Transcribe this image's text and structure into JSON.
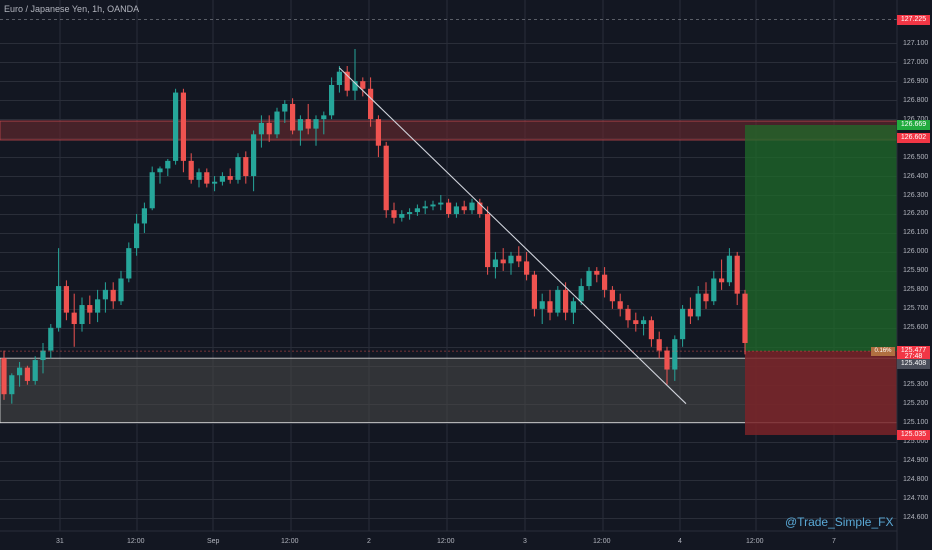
{
  "header": {
    "symbol_title": "Euro / Japanese Yen, 1h, OANDA"
  },
  "watermark": "@Trade_Simple_FX",
  "colors": {
    "background": "#131722",
    "bull": "#26a69a",
    "bear": "#ef5350",
    "grid": "#2a2e39",
    "trendline": "#d1d4dc",
    "target_zone": "#1f6b2a",
    "stop_zone": "#7a2328",
    "resistance_zone": "#6b2a2e",
    "support_zone": "#4a4a48"
  },
  "price_axis": {
    "labels": [
      "127.225",
      "127.100",
      "127.000",
      "126.900",
      "126.800",
      "126.700",
      "126.500",
      "126.400",
      "126.300",
      "126.200",
      "126.100",
      "126.000",
      "125.900",
      "125.800",
      "125.700",
      "125.600",
      "125.300",
      "125.200",
      "125.100",
      "125.000",
      "124.900",
      "124.800",
      "124.700",
      "124.600"
    ],
    "tags": [
      {
        "text": "127.225",
        "price": 127.225,
        "color": "#f23645"
      },
      {
        "text": "126.669",
        "price": 126.669,
        "color": "#22ab3e"
      },
      {
        "text": "126.602",
        "price": 126.602,
        "color": "#f23645"
      },
      {
        "text": "125.477",
        "price": 125.477,
        "color": "#f23645"
      },
      {
        "text": "27:48",
        "price": 125.445,
        "color": "#f23645"
      },
      {
        "text": "125.408",
        "price": 125.408,
        "color": "#4a4e5a"
      },
      {
        "text": "125.035",
        "price": 125.035,
        "color": "#f23645"
      }
    ],
    "small_tag": {
      "text": "0.16%",
      "price": 125.477,
      "color": "#b06f40"
    }
  },
  "time_axis": {
    "labels": [
      "31",
      "12:00",
      "Sep",
      "12:00",
      "2",
      "12:00",
      "3",
      "12:00",
      "4",
      "12:00",
      "7"
    ]
  },
  "chart_data": {
    "type": "candlestick",
    "title": "Euro / Japanese Yen, 1h, OANDA",
    "ylim": [
      124.55,
      127.27
    ],
    "grid": true,
    "position": {
      "entry": 125.477,
      "target": 126.669,
      "stop": 125.035
    },
    "zones": [
      {
        "name": "resistance",
        "from": 126.59,
        "to": 126.69
      },
      {
        "name": "support",
        "from": 125.1,
        "to": 125.44
      }
    ],
    "trendline": {
      "from_price": 126.97,
      "to_price": 125.2
    },
    "candles": [
      [
        125.44,
        125.48,
        125.22,
        125.25
      ],
      [
        125.25,
        125.36,
        125.2,
        125.35
      ],
      [
        125.35,
        125.42,
        125.29,
        125.39
      ],
      [
        125.39,
        125.4,
        125.3,
        125.32
      ],
      [
        125.32,
        125.45,
        125.3,
        125.43
      ],
      [
        125.43,
        125.52,
        125.36,
        125.48
      ],
      [
        125.48,
        125.62,
        125.44,
        125.6
      ],
      [
        125.6,
        126.02,
        125.58,
        125.82
      ],
      [
        125.82,
        125.85,
        125.64,
        125.68
      ],
      [
        125.68,
        125.78,
        125.5,
        125.62
      ],
      [
        125.62,
        125.76,
        125.58,
        125.72
      ],
      [
        125.72,
        125.77,
        125.62,
        125.68
      ],
      [
        125.68,
        125.8,
        125.63,
        125.75
      ],
      [
        125.75,
        125.84,
        125.68,
        125.8
      ],
      [
        125.8,
        125.84,
        125.7,
        125.74
      ],
      [
        125.74,
        125.9,
        125.72,
        125.86
      ],
      [
        125.86,
        126.05,
        125.84,
        126.02
      ],
      [
        126.02,
        126.2,
        125.98,
        126.15
      ],
      [
        126.15,
        126.26,
        126.1,
        126.23
      ],
      [
        126.23,
        126.45,
        126.22,
        126.42
      ],
      [
        126.42,
        126.45,
        126.36,
        126.44
      ],
      [
        126.44,
        126.49,
        126.4,
        126.48
      ],
      [
        126.48,
        126.86,
        126.46,
        126.84
      ],
      [
        126.84,
        126.86,
        126.42,
        126.48
      ],
      [
        126.48,
        126.52,
        126.36,
        126.38
      ],
      [
        126.38,
        126.44,
        126.34,
        126.42
      ],
      [
        126.42,
        126.44,
        126.34,
        126.36
      ],
      [
        126.36,
        126.4,
        126.32,
        126.37
      ],
      [
        126.37,
        126.42,
        126.35,
        126.4
      ],
      [
        126.4,
        126.44,
        126.36,
        126.38
      ],
      [
        126.38,
        126.52,
        126.36,
        126.5
      ],
      [
        126.5,
        126.53,
        126.36,
        126.4
      ],
      [
        126.4,
        126.64,
        126.32,
        126.62
      ],
      [
        126.62,
        126.72,
        126.55,
        126.68
      ],
      [
        126.68,
        126.72,
        126.58,
        126.62
      ],
      [
        126.62,
        126.76,
        126.6,
        126.74
      ],
      [
        126.74,
        126.8,
        126.68,
        126.78
      ],
      [
        126.78,
        126.81,
        126.62,
        126.64
      ],
      [
        126.64,
        126.72,
        126.56,
        126.7
      ],
      [
        126.7,
        126.78,
        126.62,
        126.65
      ],
      [
        126.65,
        126.72,
        126.56,
        126.7
      ],
      [
        126.7,
        126.74,
        126.62,
        126.72
      ],
      [
        126.72,
        126.92,
        126.7,
        126.88
      ],
      [
        126.88,
        126.98,
        126.84,
        126.95
      ],
      [
        126.95,
        126.98,
        126.82,
        126.85
      ],
      [
        126.85,
        127.07,
        126.8,
        126.9
      ],
      [
        126.9,
        126.92,
        126.82,
        126.86
      ],
      [
        126.86,
        126.92,
        126.66,
        126.7
      ],
      [
        126.7,
        126.72,
        126.5,
        126.56
      ],
      [
        126.56,
        126.58,
        126.18,
        126.22
      ],
      [
        126.22,
        126.26,
        126.15,
        126.18
      ],
      [
        126.18,
        126.22,
        126.16,
        126.2
      ],
      [
        126.2,
        126.23,
        126.17,
        126.21
      ],
      [
        126.21,
        126.25,
        126.19,
        126.23
      ],
      [
        126.23,
        126.27,
        126.2,
        126.24
      ],
      [
        126.24,
        126.27,
        126.22,
        126.25
      ],
      [
        126.25,
        126.3,
        126.22,
        126.26
      ],
      [
        126.26,
        126.28,
        126.18,
        126.2
      ],
      [
        126.2,
        126.26,
        126.18,
        126.24
      ],
      [
        126.24,
        126.27,
        126.2,
        126.22
      ],
      [
        126.22,
        126.28,
        126.2,
        126.26
      ],
      [
        126.26,
        126.28,
        126.18,
        126.2
      ],
      [
        126.2,
        126.24,
        125.88,
        125.92
      ],
      [
        125.92,
        126.0,
        125.86,
        125.96
      ],
      [
        125.96,
        126.02,
        125.9,
        125.94
      ],
      [
        125.94,
        126.0,
        125.88,
        125.98
      ],
      [
        125.98,
        126.03,
        125.92,
        125.95
      ],
      [
        125.95,
        126.0,
        125.85,
        125.88
      ],
      [
        125.88,
        125.9,
        125.66,
        125.7
      ],
      [
        125.7,
        125.78,
        125.62,
        125.74
      ],
      [
        125.74,
        125.8,
        125.64,
        125.68
      ],
      [
        125.68,
        125.82,
        125.66,
        125.8
      ],
      [
        125.8,
        125.84,
        125.64,
        125.68
      ],
      [
        125.68,
        125.76,
        125.62,
        125.74
      ],
      [
        125.74,
        125.86,
        125.72,
        125.82
      ],
      [
        125.82,
        125.92,
        125.8,
        125.9
      ],
      [
        125.9,
        125.92,
        125.84,
        125.88
      ],
      [
        125.88,
        125.92,
        125.76,
        125.8
      ],
      [
        125.8,
        125.82,
        125.7,
        125.74
      ],
      [
        125.74,
        125.78,
        125.66,
        125.7
      ],
      [
        125.7,
        125.72,
        125.6,
        125.64
      ],
      [
        125.64,
        125.68,
        125.58,
        125.62
      ],
      [
        125.62,
        125.66,
        125.56,
        125.64
      ],
      [
        125.64,
        125.66,
        125.5,
        125.54
      ],
      [
        125.54,
        125.58,
        125.44,
        125.48
      ],
      [
        125.48,
        125.5,
        125.3,
        125.38
      ],
      [
        125.38,
        125.56,
        125.32,
        125.54
      ],
      [
        125.54,
        125.72,
        125.5,
        125.7
      ],
      [
        125.7,
        125.76,
        125.62,
        125.66
      ],
      [
        125.66,
        125.82,
        125.64,
        125.78
      ],
      [
        125.78,
        125.84,
        125.7,
        125.74
      ],
      [
        125.74,
        125.9,
        125.72,
        125.86
      ],
      [
        125.86,
        125.96,
        125.8,
        125.84
      ],
      [
        125.84,
        126.02,
        125.82,
        125.98
      ],
      [
        125.98,
        126.0,
        125.72,
        125.78
      ],
      [
        125.78,
        125.8,
        125.46,
        125.52
      ]
    ]
  }
}
